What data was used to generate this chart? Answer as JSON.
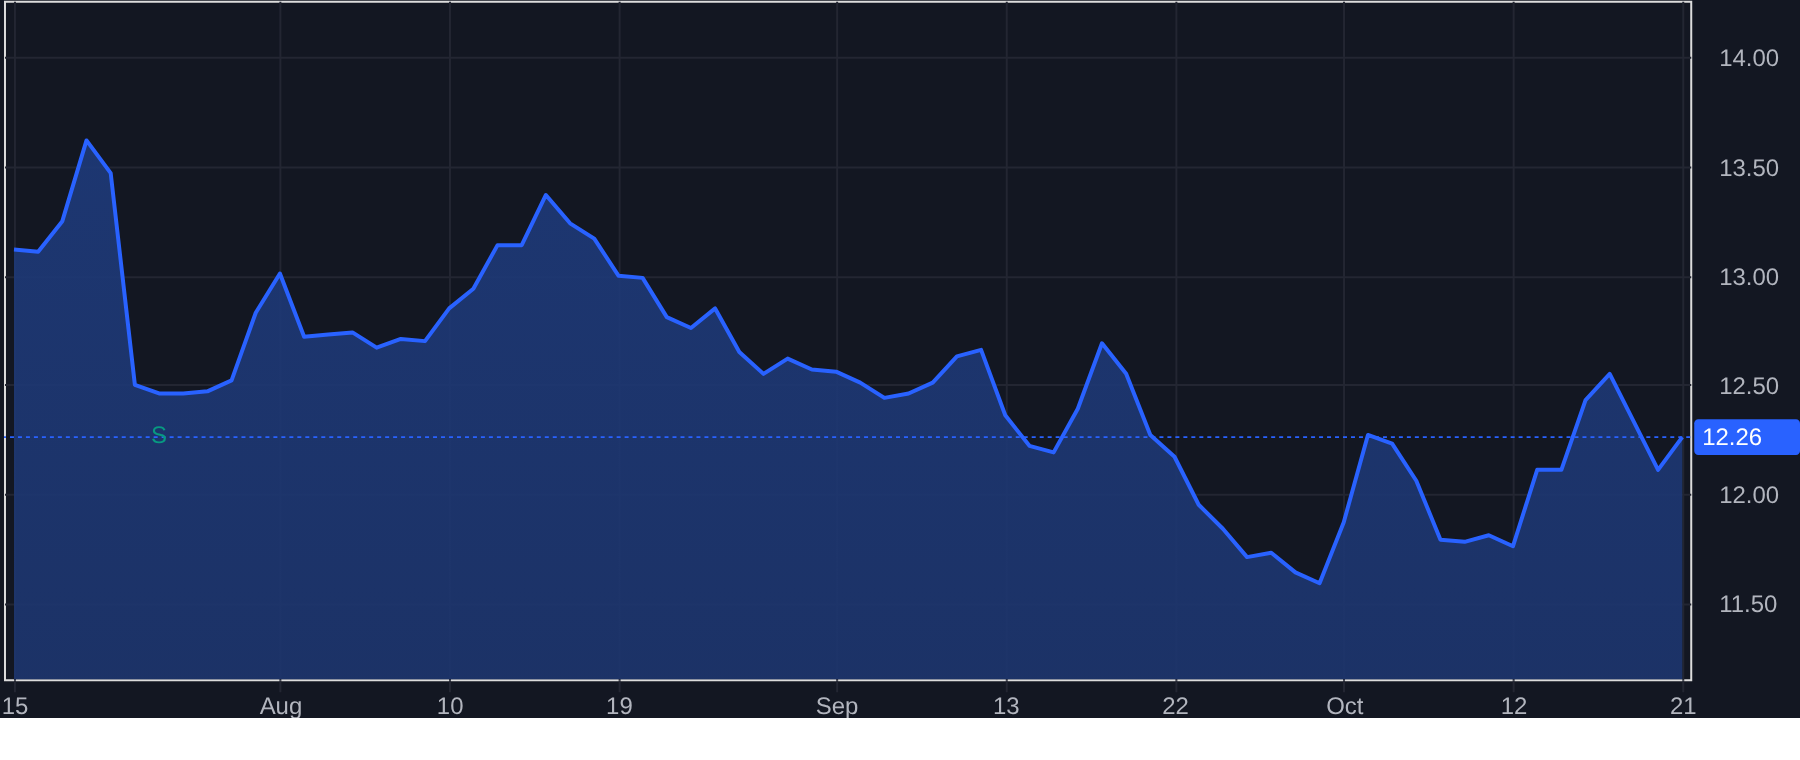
{
  "chart_data": {
    "type": "area",
    "categories": [
      "15",
      null,
      null,
      null,
      null,
      null,
      null,
      null,
      null,
      null,
      null,
      "Aug",
      null,
      null,
      null,
      null,
      null,
      null,
      "10",
      null,
      null,
      null,
      null,
      null,
      null,
      "19",
      null,
      null,
      null,
      null,
      null,
      null,
      null,
      null,
      "Sep",
      null,
      null,
      null,
      null,
      null,
      null,
      "13",
      null,
      null,
      null,
      null,
      null,
      null,
      "22",
      null,
      null,
      null,
      null,
      null,
      null,
      "Oct",
      null,
      null,
      null,
      null,
      null,
      null,
      "12",
      null,
      null,
      null,
      null,
      null,
      null,
      "21"
    ],
    "series": [
      {
        "color": "#2962ff",
        "values": [
          13.12,
          13.11,
          13.25,
          13.62,
          13.47,
          12.5,
          12.46,
          12.46,
          12.47,
          12.52,
          12.83,
          13.01,
          12.72,
          12.73,
          12.74,
          12.67,
          12.71,
          12.7,
          12.85,
          12.94,
          13.14,
          13.14,
          13.37,
          13.24,
          13.17,
          13.0,
          12.99,
          12.81,
          12.76,
          12.85,
          12.65,
          12.55,
          12.62,
          12.57,
          12.56,
          12.51,
          12.44,
          12.46,
          12.51,
          12.63,
          12.66,
          12.36,
          12.22,
          12.19,
          12.39,
          12.69,
          12.55,
          12.27,
          12.17,
          11.95,
          11.84,
          11.71,
          11.73,
          11.64,
          11.59,
          11.87,
          12.27,
          12.23,
          12.06,
          11.79,
          11.78,
          11.81,
          11.76,
          12.11,
          12.11,
          12.43,
          12.55,
          12.33,
          12.11,
          12.26
        ]
      }
    ],
    "ylim": [
      11.15,
      14.26
    ],
    "yticks": [
      {
        "value": 11.5,
        "label": "11.50"
      },
      {
        "value": 12,
        "label": "12.00"
      },
      {
        "value": 12.5,
        "label": "12.50"
      },
      {
        "value": 13,
        "label": "13.00"
      },
      {
        "value": 13.5,
        "label": "13.50"
      },
      {
        "value": 14,
        "label": "14.00"
      }
    ],
    "ref_lines": [
      {
        "axis": "y",
        "value": 12.26,
        "label": "12.26",
        "color": "#2962ff",
        "line_style": "dotted"
      }
    ],
    "annotations": [
      {
        "text": "S",
        "y": 12.46
      }
    ],
    "grid": true,
    "marker": "none",
    "line_style": "solid"
  }
}
